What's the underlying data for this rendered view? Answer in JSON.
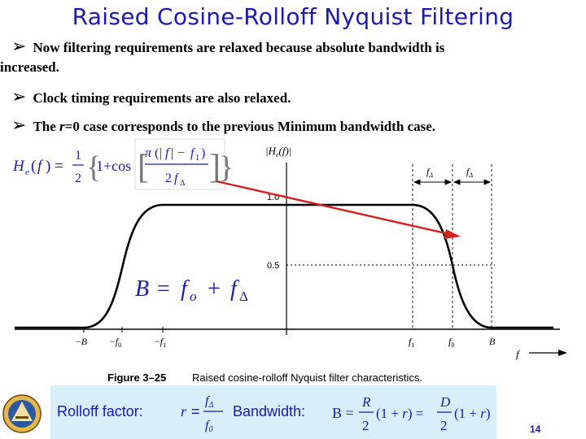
{
  "slide": {
    "title": "Raised Cosine-Rolloff  Nyquist Filtering",
    "bullets": [
      {
        "pre": "Now filtering requirements are relaxed because absolute bandwidth is",
        "cont": "increased."
      },
      {
        "pre": "Clock timing requirements are also relaxed."
      },
      {
        "pre": "The ",
        "italic": "r",
        "post": "=0 case corresponds to the previous Minimum bandwidth case."
      }
    ],
    "page_number": "14"
  },
  "figure": {
    "caption_label": "Figure 3–25",
    "caption_text": "Raised cosine-rolloff Nyquist filter characteristics.",
    "y_axis_label": "|H_e(f)|",
    "level_1": "1.0",
    "level_half": "0.5",
    "x_ticks": [
      "–B",
      "–f_0",
      "–f_1",
      "f_1",
      "f_0",
      "B"
    ],
    "x_axis_symbol": "f",
    "dim_labels": [
      "f_Δ",
      "f_Δ"
    ],
    "bandwidth_eq": "B = f_o + f_Δ",
    "line_color": "#000000",
    "arrow_color": "#d21f1f"
  },
  "rolloff_box": {
    "rolloff_label": "Rolloff factor:",
    "r_symbol": "r",
    "r_num": "f_Δ",
    "r_den": "f_0",
    "bandwidth_label": "Bandwidth:",
    "bw_lhs": "B",
    "bw_frac1_num": "R",
    "bw_frac1_den": "2",
    "bw_factor": "(1 + r)",
    "bw_frac2_num": "D",
    "bw_frac2_den": "2",
    "background": "#d7eefb"
  }
}
